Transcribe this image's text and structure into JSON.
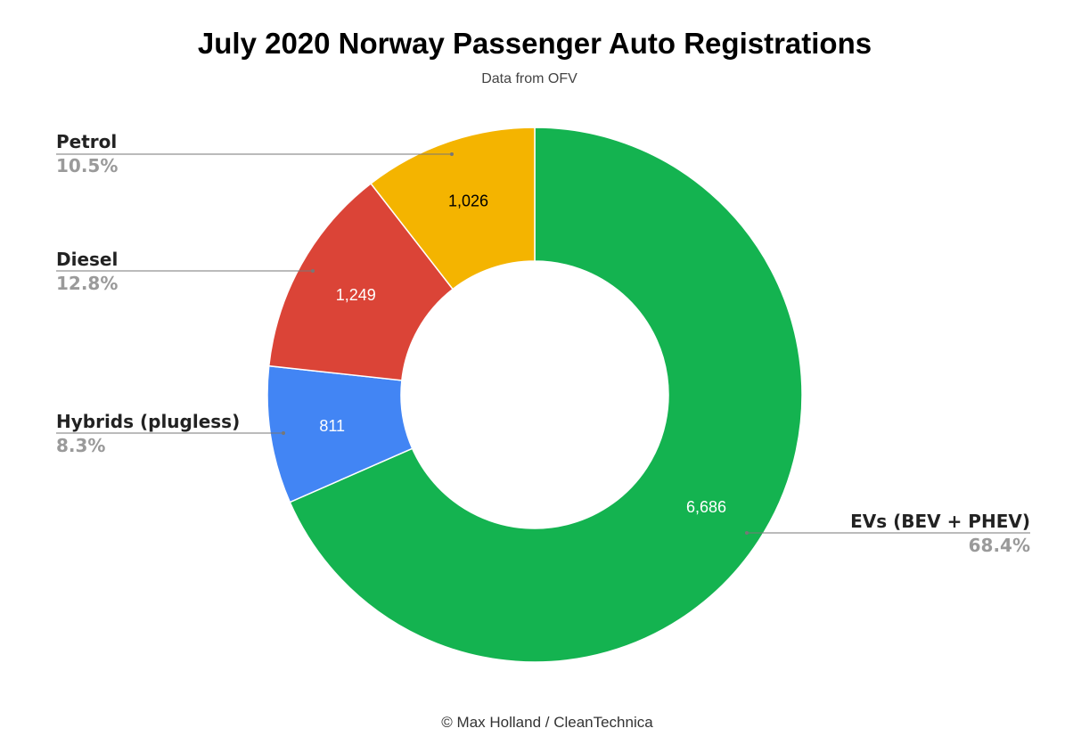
{
  "chart_data": {
    "type": "pie",
    "donut": true,
    "title": "July 2020 Norway Passenger Auto Registrations",
    "subtitle": "Data from OFV",
    "footer": "© Max Holland / CleanTechnica",
    "slices": [
      {
        "name": "EVs (BEV + PHEV)",
        "value": 6686,
        "value_label": "6,686",
        "percent": "68.4%",
        "color": "#14b350",
        "value_label_color": "#ffffff"
      },
      {
        "name": "Hybrids (plugless)",
        "value": 811,
        "value_label": "811",
        "percent": "8.3%",
        "color": "#4285f4",
        "value_label_color": "#ffffff"
      },
      {
        "name": "Diesel",
        "value": 1249,
        "value_label": "1,249",
        "percent": "12.8%",
        "color": "#db4437",
        "value_label_color": "#ffffff"
      },
      {
        "name": "Petrol",
        "value": 1026,
        "value_label": "1,026",
        "percent": "10.5%",
        "color": "#f4b400",
        "value_label_color": "#000000"
      }
    ]
  }
}
